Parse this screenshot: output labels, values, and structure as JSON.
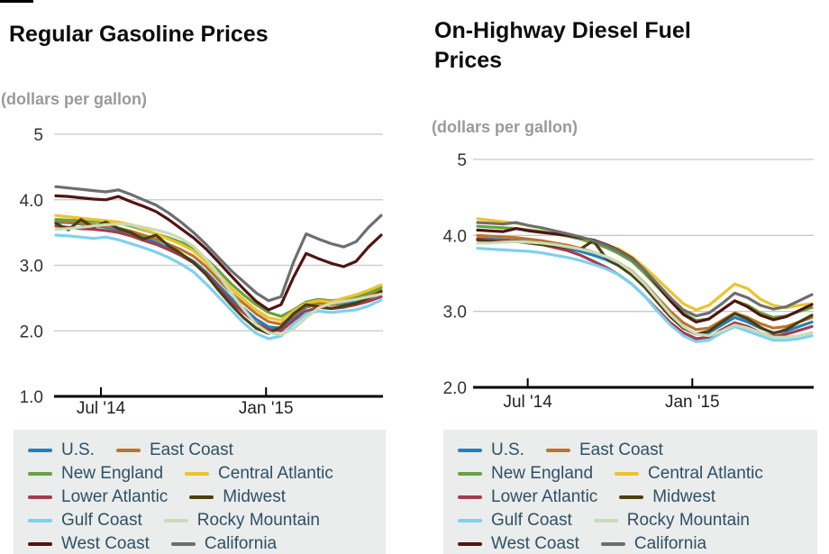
{
  "chart_data": [
    {
      "type": "line",
      "title": "Regular Gasoline Prices",
      "units_label": "(dollars per gallon)",
      "ylim": [
        1,
        5
      ],
      "grid": true,
      "legend_position": "below",
      "y_ticks": [
        {
          "label": "5",
          "value": 5
        },
        {
          "label": "4.0",
          "value": 4
        },
        {
          "label": "3.0",
          "value": 3
        },
        {
          "label": "2.0",
          "value": 2
        },
        {
          "label": "1.0",
          "value": 1
        }
      ],
      "x_ticks": [
        {
          "label": "Jul '14",
          "position": 3.6
        },
        {
          "label": "Jan '15",
          "position": 16.8
        }
      ],
      "series": [
        {
          "name": "U.S.",
          "color": "#1f83b9",
          "values": [
            3.66,
            3.65,
            3.63,
            3.61,
            3.58,
            3.54,
            3.48,
            3.42,
            3.35,
            3.26,
            3.17,
            3.06,
            2.9,
            2.7,
            2.5,
            2.34,
            2.18,
            2.06,
            2.04,
            2.2,
            2.36,
            2.42,
            2.4,
            2.42,
            2.45,
            2.5,
            2.57
          ]
        },
        {
          "name": "East Coast",
          "color": "#bd742c",
          "values": [
            3.68,
            3.66,
            3.64,
            3.62,
            3.6,
            3.57,
            3.52,
            3.46,
            3.4,
            3.32,
            3.24,
            3.14,
            2.98,
            2.78,
            2.58,
            2.42,
            2.26,
            2.14,
            2.1,
            2.24,
            2.38,
            2.42,
            2.4,
            2.44,
            2.48,
            2.54,
            2.62
          ]
        },
        {
          "name": "New England",
          "color": "#69a23d",
          "values": [
            3.7,
            3.69,
            3.68,
            3.67,
            3.66,
            3.64,
            3.6,
            3.54,
            3.48,
            3.42,
            3.35,
            3.26,
            3.1,
            2.92,
            2.72,
            2.55,
            2.4,
            2.28,
            2.22,
            2.32,
            2.44,
            2.48,
            2.46,
            2.48,
            2.52,
            2.58,
            2.66
          ]
        },
        {
          "name": "Central Atlantic",
          "color": "#ecc32e",
          "values": [
            3.76,
            3.74,
            3.72,
            3.7,
            3.68,
            3.66,
            3.62,
            3.55,
            3.48,
            3.4,
            3.32,
            3.22,
            3.05,
            2.85,
            2.65,
            2.48,
            2.32,
            2.2,
            2.16,
            2.3,
            2.42,
            2.46,
            2.44,
            2.5,
            2.55,
            2.62,
            2.7
          ]
        },
        {
          "name": "Lower Atlantic",
          "color": "#a23c4e",
          "values": [
            3.6,
            3.58,
            3.56,
            3.55,
            3.53,
            3.5,
            3.45,
            3.38,
            3.32,
            3.24,
            3.15,
            3.04,
            2.88,
            2.66,
            2.45,
            2.28,
            2.12,
            2.02,
            2.0,
            2.16,
            2.3,
            2.36,
            2.34,
            2.36,
            2.4,
            2.45,
            2.52
          ]
        },
        {
          "name": "Midwest",
          "color": "#4b3e10",
          "values": [
            3.64,
            3.54,
            3.7,
            3.58,
            3.66,
            3.56,
            3.5,
            3.4,
            3.46,
            3.3,
            3.18,
            3.04,
            2.86,
            2.62,
            2.4,
            2.2,
            2.04,
            1.96,
            2.06,
            2.26,
            2.4,
            2.37,
            2.34,
            2.38,
            2.42,
            2.5,
            2.6
          ]
        },
        {
          "name": "Gulf Coast",
          "color": "#7fd0f0",
          "values": [
            3.46,
            3.45,
            3.43,
            3.41,
            3.43,
            3.39,
            3.33,
            3.27,
            3.2,
            3.12,
            3.02,
            2.9,
            2.72,
            2.52,
            2.32,
            2.12,
            1.96,
            1.88,
            1.92,
            2.1,
            2.26,
            2.3,
            2.28,
            2.3,
            2.32,
            2.38,
            2.47
          ]
        },
        {
          "name": "Rocky Mountain",
          "color": "#c9dcb8",
          "values": [
            3.55,
            3.56,
            3.58,
            3.6,
            3.62,
            3.63,
            3.62,
            3.58,
            3.54,
            3.49,
            3.41,
            3.29,
            3.1,
            2.86,
            2.58,
            2.33,
            2.1,
            1.97,
            1.94,
            2.03,
            2.2,
            2.35,
            2.42,
            2.45,
            2.48,
            2.52,
            2.56
          ]
        },
        {
          "name": "West Coast",
          "color": "#511512",
          "values": [
            4.06,
            4.05,
            4.03,
            4.01,
            4.0,
            4.05,
            3.97,
            3.9,
            3.82,
            3.7,
            3.56,
            3.42,
            3.25,
            3.05,
            2.84,
            2.64,
            2.45,
            2.32,
            2.4,
            2.82,
            3.18,
            3.1,
            3.03,
            2.98,
            3.06,
            3.28,
            3.46
          ]
        },
        {
          "name": "California",
          "color": "#6e6e6e",
          "values": [
            4.2,
            4.18,
            4.16,
            4.14,
            4.12,
            4.15,
            4.08,
            4.0,
            3.92,
            3.8,
            3.66,
            3.5,
            3.32,
            3.12,
            2.92,
            2.75,
            2.58,
            2.46,
            2.52,
            3.05,
            3.48,
            3.4,
            3.33,
            3.28,
            3.36,
            3.58,
            3.76
          ]
        }
      ]
    },
    {
      "type": "line",
      "title": "On-Highway Diesel Fuel Prices",
      "units_label": "(dollars per gallon)",
      "ylim": [
        2,
        5
      ],
      "grid": true,
      "legend_position": "below",
      "y_ticks": [
        {
          "label": "5",
          "value": 5
        },
        {
          "label": "4.0",
          "value": 4
        },
        {
          "label": "3.0",
          "value": 3
        },
        {
          "label": "2.0",
          "value": 2
        }
      ],
      "x_ticks": [
        {
          "label": "Jul '14",
          "position": 3.9
        },
        {
          "label": "Jan '15",
          "position": 16.7
        }
      ],
      "series": [
        {
          "name": "U.S.",
          "color": "#1f83b9",
          "values": [
            3.96,
            3.95,
            3.94,
            3.93,
            3.91,
            3.89,
            3.86,
            3.83,
            3.79,
            3.74,
            3.68,
            3.6,
            3.48,
            3.32,
            3.12,
            2.94,
            2.79,
            2.7,
            2.72,
            2.82,
            2.92,
            2.86,
            2.78,
            2.72,
            2.74,
            2.8,
            2.86
          ]
        },
        {
          "name": "East Coast",
          "color": "#bd742c",
          "values": [
            4.0,
            3.99,
            3.98,
            3.97,
            3.95,
            3.93,
            3.9,
            3.87,
            3.83,
            3.78,
            3.72,
            3.64,
            3.53,
            3.37,
            3.18,
            3.0,
            2.85,
            2.76,
            2.78,
            2.88,
            2.98,
            2.92,
            2.84,
            2.78,
            2.8,
            2.86,
            2.92
          ]
        },
        {
          "name": "New England",
          "color": "#69a23d",
          "values": [
            4.12,
            4.11,
            4.1,
            4.09,
            4.07,
            4.05,
            4.02,
            3.99,
            3.95,
            3.9,
            3.84,
            3.76,
            3.66,
            3.5,
            3.32,
            3.14,
            2.98,
            2.88,
            2.9,
            3.02,
            3.14,
            3.08,
            2.98,
            2.92,
            2.94,
            3.0,
            3.05
          ]
        },
        {
          "name": "Central Atlantic",
          "color": "#ecc32e",
          "values": [
            4.22,
            4.2,
            4.18,
            4.16,
            4.13,
            4.1,
            4.06,
            4.02,
            3.97,
            3.93,
            3.88,
            3.82,
            3.72,
            3.58,
            3.42,
            3.26,
            3.1,
            3.02,
            3.08,
            3.22,
            3.36,
            3.3,
            3.16,
            3.08,
            3.05,
            3.08,
            3.1
          ]
        },
        {
          "name": "Lower Atlantic",
          "color": "#a23c4e",
          "values": [
            3.95,
            3.94,
            3.93,
            3.92,
            3.9,
            3.88,
            3.84,
            3.8,
            3.74,
            3.66,
            3.58,
            3.48,
            3.36,
            3.2,
            3.02,
            2.85,
            2.72,
            2.64,
            2.66,
            2.76,
            2.85,
            2.8,
            2.72,
            2.67,
            2.7,
            2.75,
            2.8
          ]
        },
        {
          "name": "Midwest",
          "color": "#4b3e10",
          "values": [
            3.94,
            3.92,
            3.91,
            3.93,
            3.9,
            3.88,
            3.86,
            3.84,
            3.82,
            3.93,
            3.7,
            3.6,
            3.48,
            3.32,
            3.12,
            2.93,
            2.78,
            2.7,
            2.74,
            2.86,
            2.97,
            2.9,
            2.79,
            2.71,
            2.76,
            2.86,
            2.95
          ]
        },
        {
          "name": "Gulf Coast",
          "color": "#7fd0f0",
          "values": [
            3.83,
            3.82,
            3.81,
            3.8,
            3.79,
            3.77,
            3.74,
            3.71,
            3.67,
            3.62,
            3.56,
            3.48,
            3.36,
            3.2,
            3.0,
            2.82,
            2.68,
            2.6,
            2.62,
            2.72,
            2.8,
            2.74,
            2.68,
            2.62,
            2.62,
            2.64,
            2.68
          ]
        },
        {
          "name": "Rocky Mountain",
          "color": "#c9dcb8",
          "values": [
            3.9,
            3.9,
            3.91,
            3.92,
            3.91,
            3.9,
            3.88,
            3.85,
            3.82,
            3.78,
            3.72,
            3.64,
            3.52,
            3.36,
            3.16,
            2.96,
            2.8,
            2.7,
            2.68,
            2.74,
            2.82,
            2.78,
            2.72,
            2.66,
            2.66,
            2.68,
            2.72
          ]
        },
        {
          "name": "West Coast",
          "color": "#511512",
          "values": [
            4.07,
            4.06,
            4.05,
            4.09,
            4.06,
            4.04,
            4.02,
            4.0,
            3.97,
            3.94,
            3.88,
            3.8,
            3.7,
            3.54,
            3.34,
            3.14,
            2.96,
            2.86,
            2.9,
            3.02,
            3.14,
            3.06,
            2.95,
            2.89,
            2.93,
            3.01,
            3.09
          ]
        },
        {
          "name": "California",
          "color": "#6e6e6e",
          "values": [
            4.17,
            4.16,
            4.15,
            4.17,
            4.13,
            4.1,
            4.06,
            4.02,
            3.98,
            3.93,
            3.87,
            3.79,
            3.69,
            3.54,
            3.36,
            3.18,
            3.02,
            2.94,
            2.98,
            3.1,
            3.24,
            3.18,
            3.08,
            3.03,
            3.06,
            3.14,
            3.22
          ]
        }
      ]
    }
  ]
}
